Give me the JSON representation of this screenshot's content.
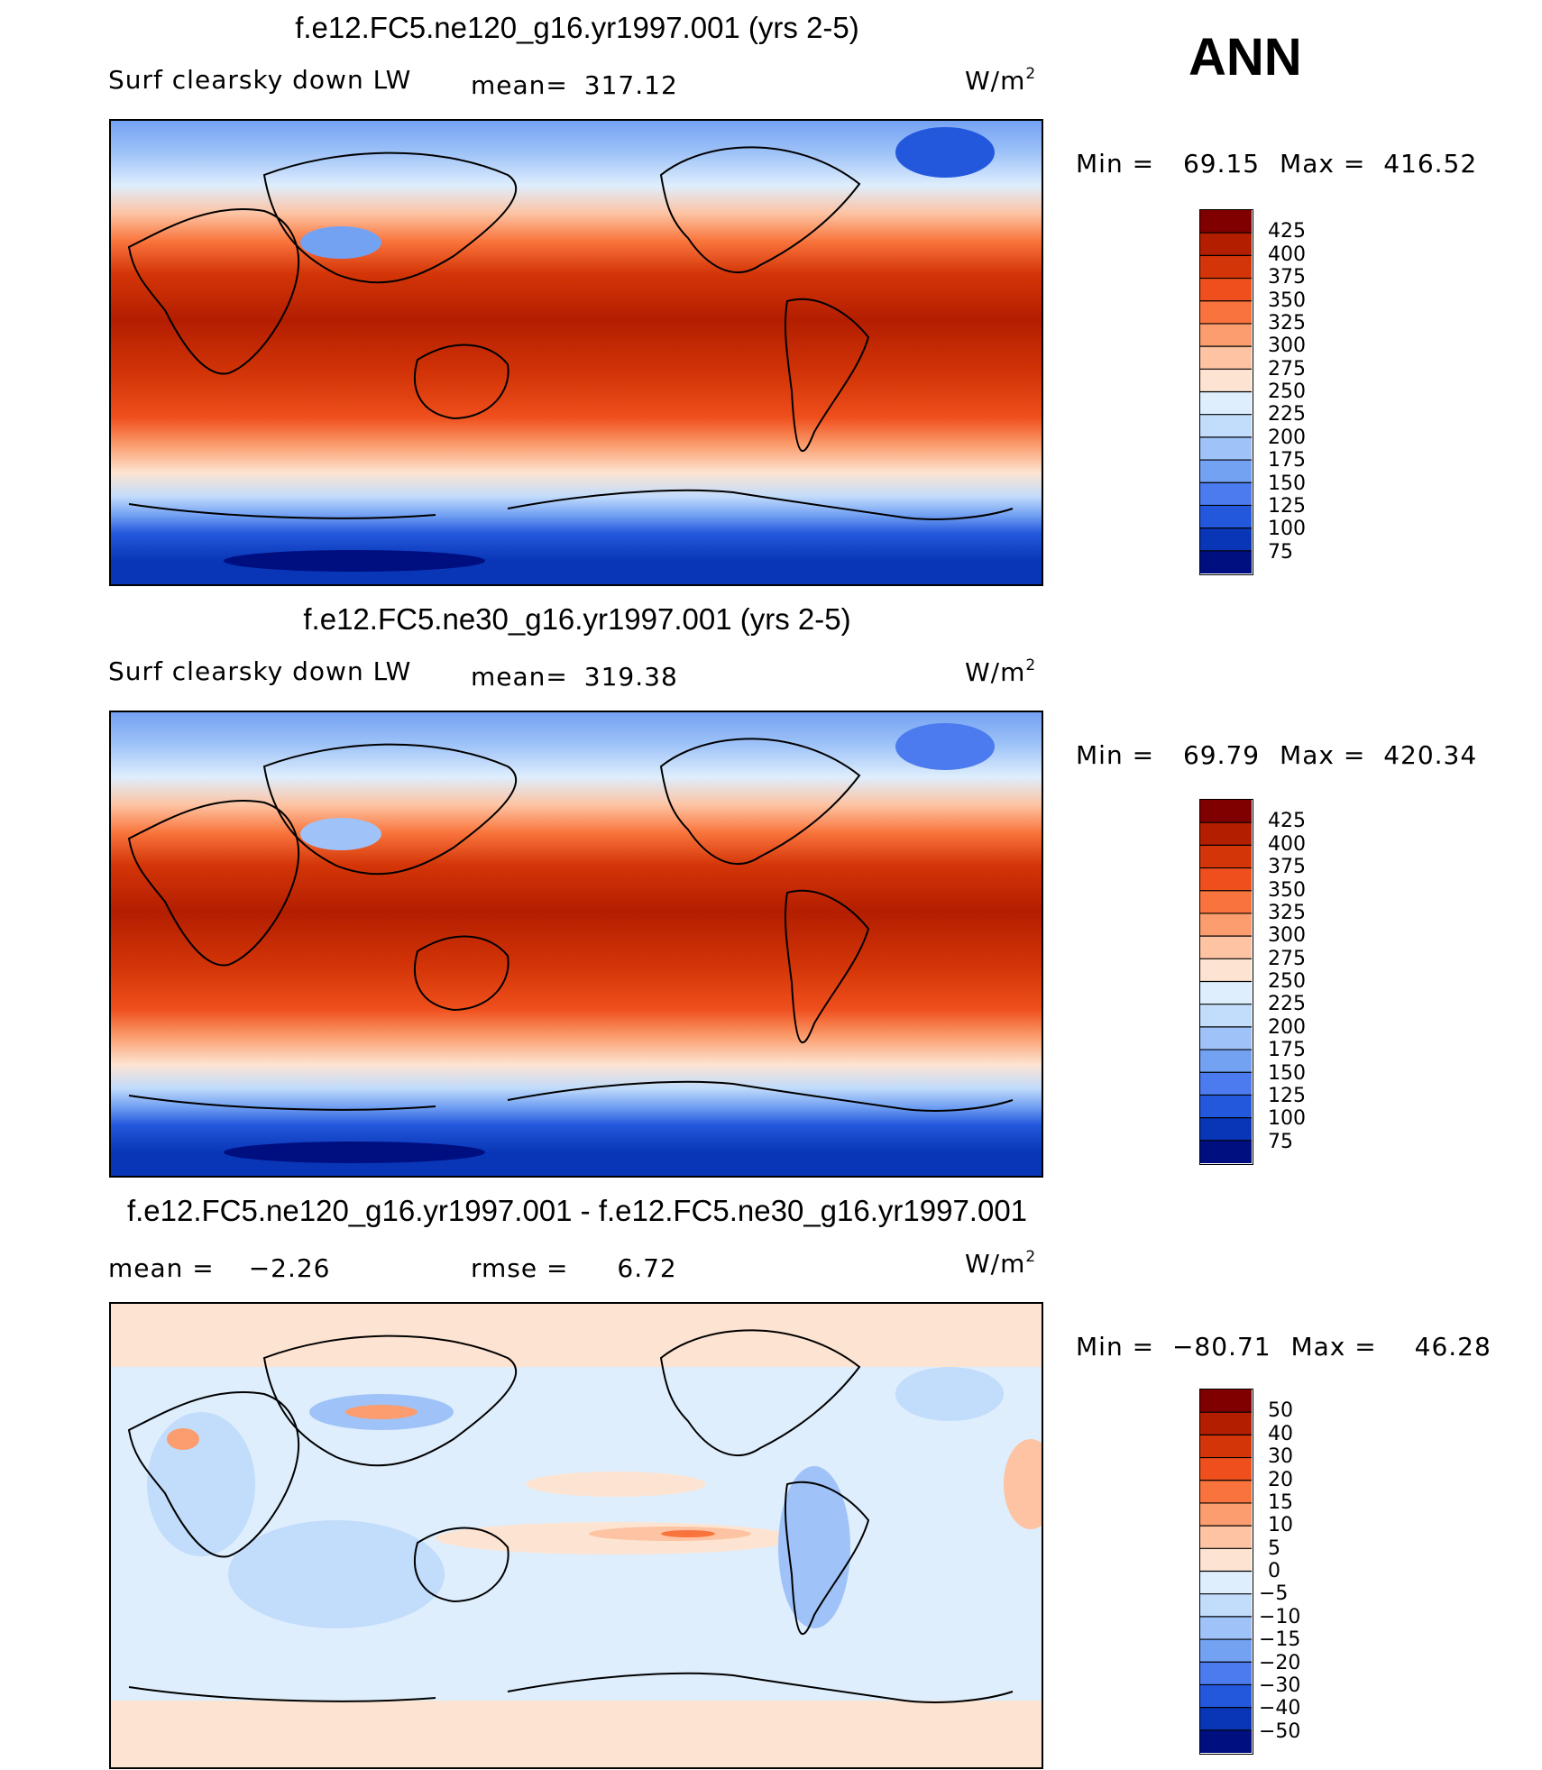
{
  "season": "ANN",
  "chart_data": [
    {
      "type": "heatmap",
      "title": "f.e12.FC5.ne120_g16.yr1997.001 (yrs 2-5)",
      "variable": "Surf clearsky down LW",
      "mean_label": "mean=",
      "mean": "317.12",
      "units_base": "W/m",
      "units_exp": "2",
      "min_label": "Min =",
      "min": "69.15",
      "max_label": "Max =",
      "max": "416.52",
      "levels": [
        "425",
        "400",
        "375",
        "350",
        "325",
        "300",
        "275",
        "250",
        "225",
        "200",
        "175",
        "150",
        "125",
        "100",
        "75"
      ],
      "colors": [
        "#800000",
        "#b31e00",
        "#d43508",
        "#ef4f1c",
        "#f9743c",
        "#fb9d6e",
        "#fdc3a2",
        "#fde4d2",
        "#deeefd",
        "#c2dcfb",
        "#9fc3f8",
        "#74a2f3",
        "#4b7bee",
        "#2458dc",
        "#0836b6",
        "#000f80"
      ],
      "grid": false
    },
    {
      "type": "heatmap",
      "title": "f.e12.FC5.ne30_g16.yr1997.001 (yrs 2-5)",
      "variable": "Surf clearsky down LW",
      "mean_label": "mean=",
      "mean": "319.38",
      "units_base": "W/m",
      "units_exp": "2",
      "min_label": "Min =",
      "min": "69.79",
      "max_label": "Max =",
      "max": "420.34",
      "levels": [
        "425",
        "400",
        "375",
        "350",
        "325",
        "300",
        "275",
        "250",
        "225",
        "200",
        "175",
        "150",
        "125",
        "100",
        "75"
      ],
      "colors": [
        "#800000",
        "#b31e00",
        "#d43508",
        "#ef4f1c",
        "#f9743c",
        "#fb9d6e",
        "#fdc3a2",
        "#fde4d2",
        "#deeefd",
        "#c2dcfb",
        "#9fc3f8",
        "#74a2f3",
        "#4b7bee",
        "#2458dc",
        "#0836b6",
        "#000f80"
      ],
      "grid": false
    },
    {
      "type": "heatmap",
      "title": "f.e12.FC5.ne120_g16.yr1997.001 - f.e12.FC5.ne30_g16.yr1997.001",
      "variable": "",
      "mean_label": "mean =",
      "mean": "−2.26",
      "rmse_label": "rmse =",
      "rmse": "6.72",
      "units_base": "W/m",
      "units_exp": "2",
      "min_label": "Min =",
      "min": "−80.71",
      "max_label": "Max =",
      "max": "46.28",
      "levels": [
        "50",
        "40",
        "30",
        "20",
        "15",
        "10",
        "5",
        "0",
        "−5",
        "−10",
        "−15",
        "−20",
        "−30",
        "−40",
        "−50"
      ],
      "colors": [
        "#800000",
        "#b31e00",
        "#d43508",
        "#ef4f1c",
        "#f9743c",
        "#fb9d6e",
        "#fdc3a2",
        "#fde4d2",
        "#deeefd",
        "#c2dcfb",
        "#9fc3f8",
        "#74a2f3",
        "#4b7bee",
        "#2458dc",
        "#0836b6",
        "#000f80"
      ],
      "grid": false
    }
  ]
}
